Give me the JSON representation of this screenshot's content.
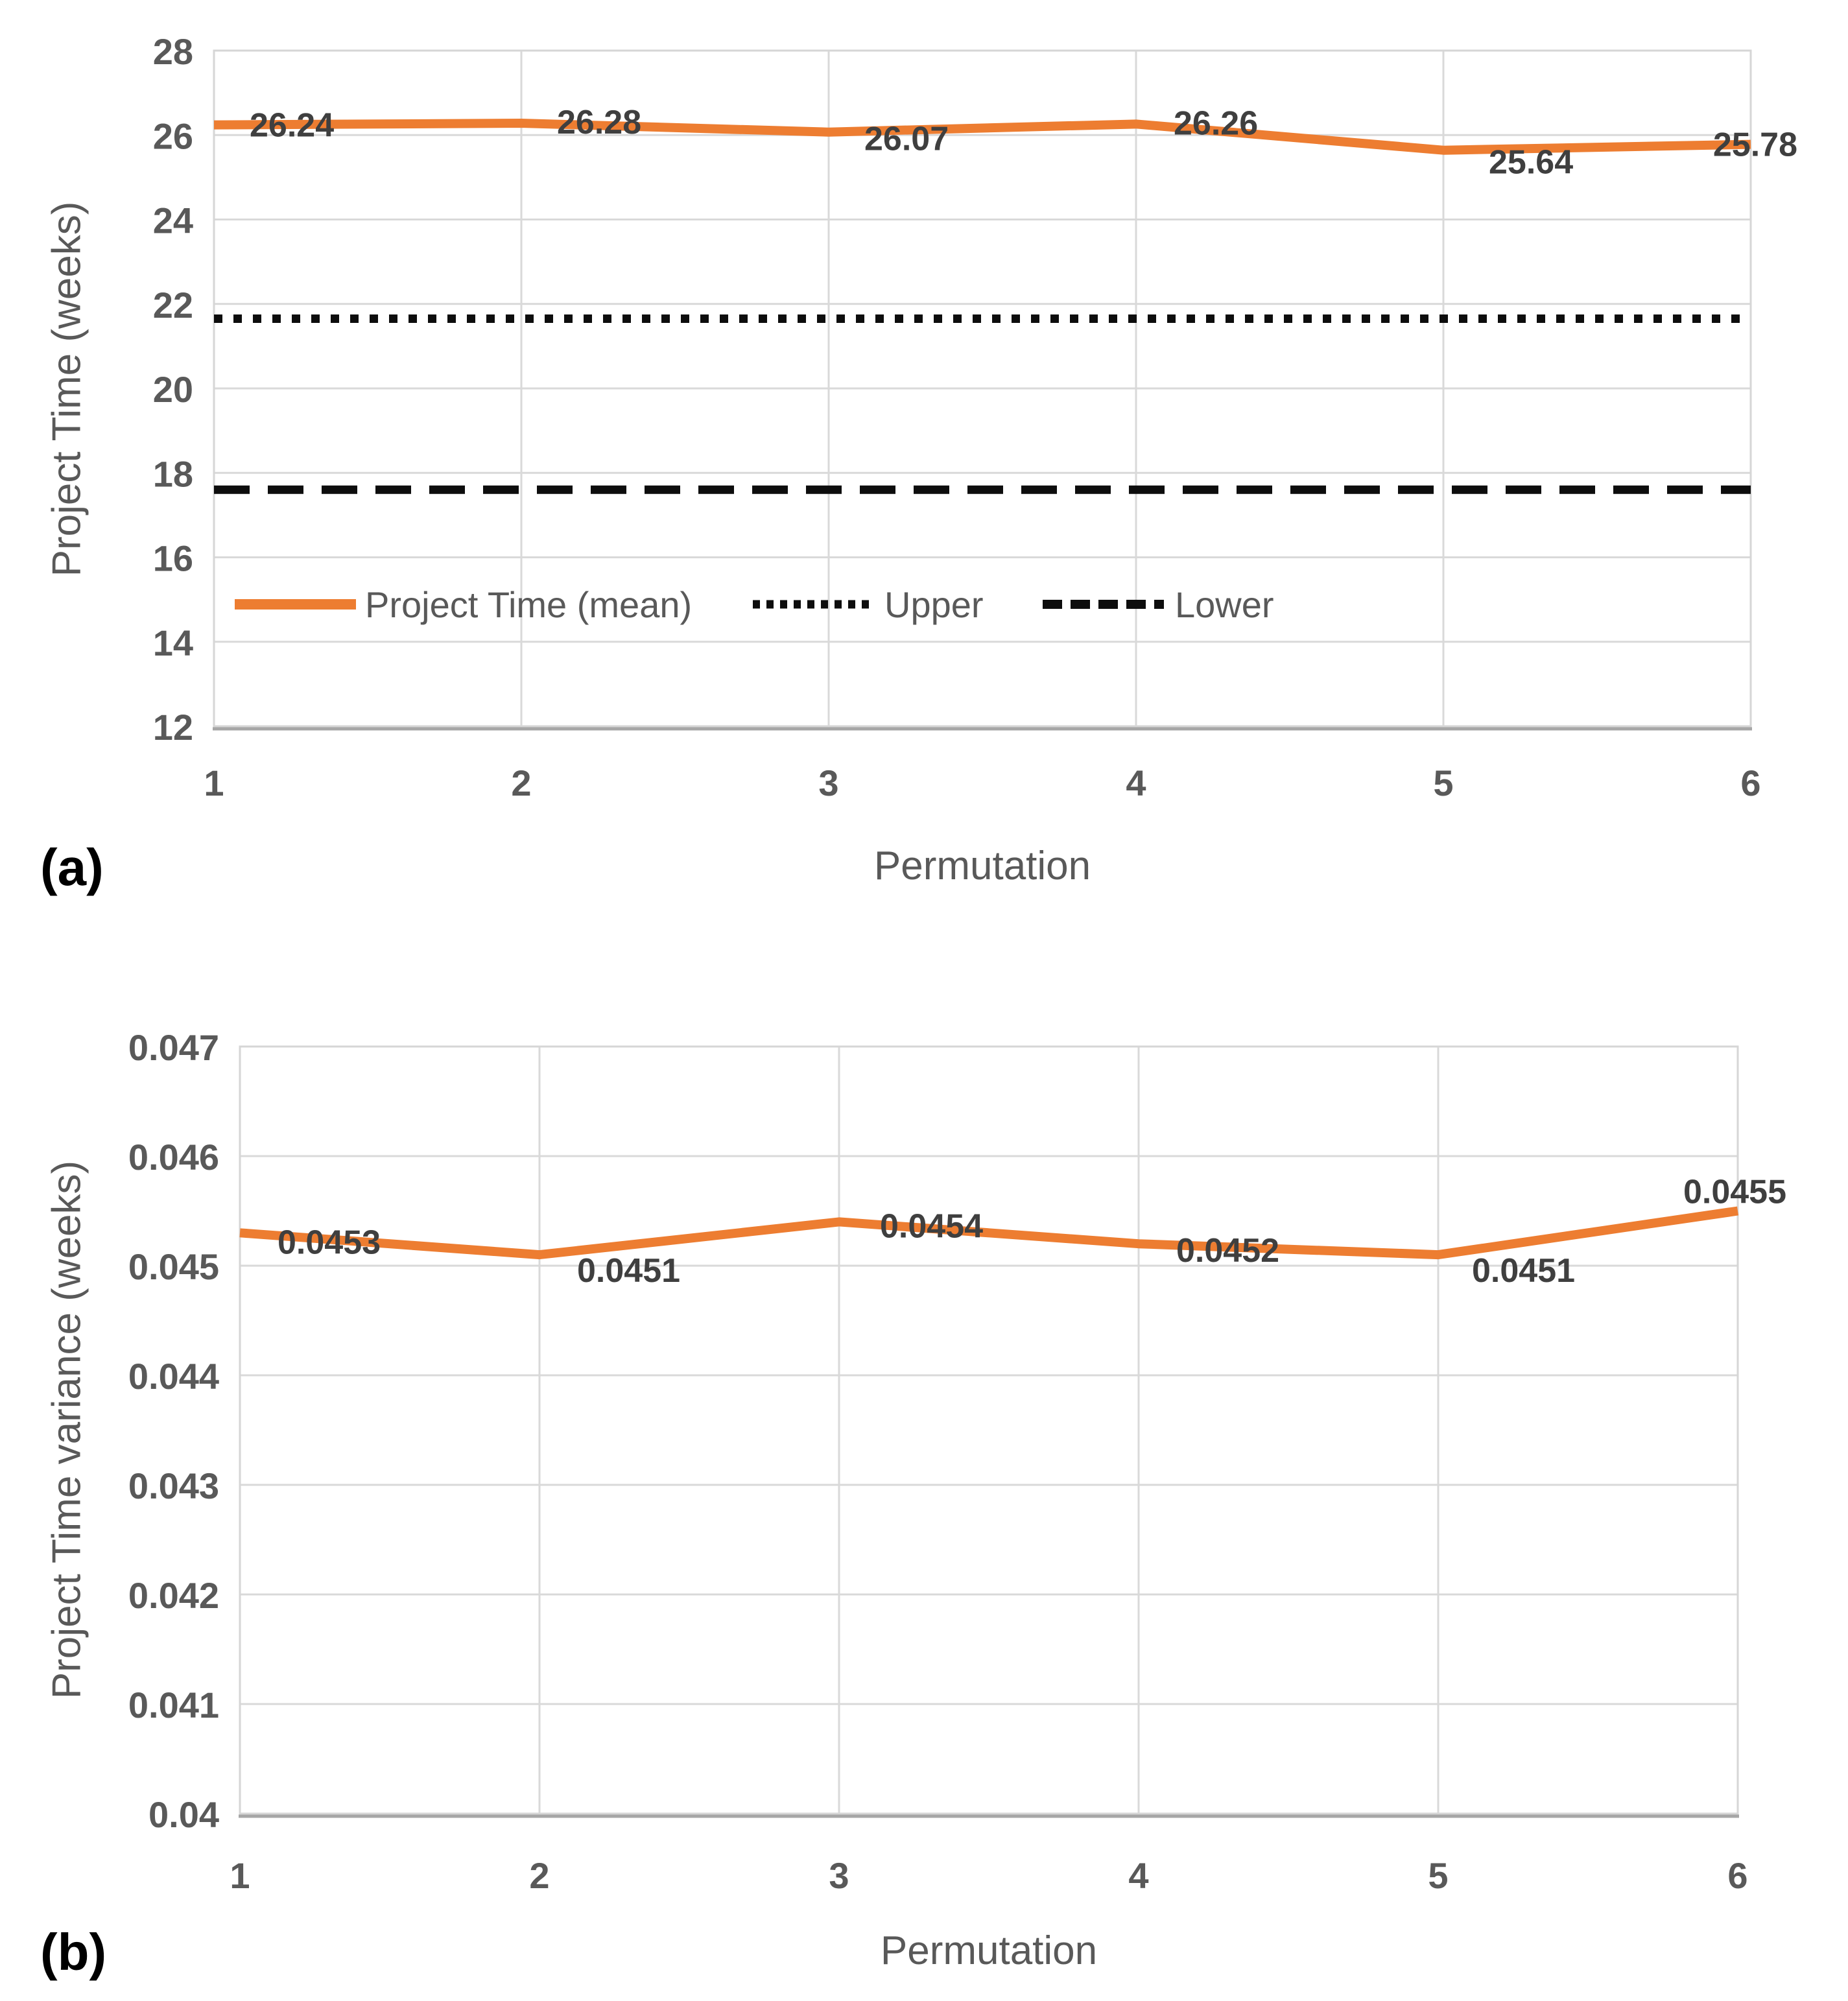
{
  "colors": {
    "series_orange": "#ED7D31",
    "bound_black": "#0d0d0d",
    "grid": "#D9D9D9",
    "plot_border": "#D6D6D6",
    "bottom_axis": "#A6A6A6",
    "tick_text": "#595959",
    "data_label_text": "#3F3F3F",
    "axis_title_text": "#595959",
    "panel_label_text": "#000000"
  },
  "chart_data": [
    {
      "type": "line",
      "panel_label": "(a)",
      "xlabel": "Permutation",
      "ylabel": "Project Time (weeks)",
      "x": [
        1,
        2,
        3,
        4,
        5,
        6
      ],
      "xtick_labels": [
        "1",
        "2",
        "3",
        "4",
        "5",
        "6"
      ],
      "ylim": [
        12,
        28
      ],
      "grid": true,
      "yticks": [
        {
          "v": 12,
          "label": "12"
        },
        {
          "v": 14,
          "label": "14"
        },
        {
          "v": 16,
          "label": "16"
        },
        {
          "v": 18,
          "label": "18"
        },
        {
          "v": 20,
          "label": "20"
        },
        {
          "v": 22,
          "label": "22"
        },
        {
          "v": 24,
          "label": "24"
        },
        {
          "v": 26,
          "label": "26"
        },
        {
          "v": 28,
          "label": "28"
        }
      ],
      "series": [
        {
          "name": "Project Time (mean)",
          "style": "solid",
          "color": "#ED7D31",
          "values": [
            26.24,
            26.28,
            26.07,
            26.26,
            25.64,
            25.78
          ],
          "point_labels": [
            "26.24",
            "26.28",
            "26.07",
            "26.26",
            "25.64",
            "25.78"
          ]
        },
        {
          "name": "Upper",
          "style": "dotted",
          "color": "#0d0d0d",
          "constant": 21.65
        },
        {
          "name": "Lower",
          "style": "dashed",
          "color": "#0d0d0d",
          "constant": 17.6
        }
      ],
      "legend": {
        "position": "inside-bottom-left",
        "labels": [
          "Project Time (mean)",
          "Upper",
          "Lower"
        ]
      }
    },
    {
      "type": "line",
      "panel_label": "(b)",
      "xlabel": "Permutation",
      "ylabel": "Project Time variance (weeks)",
      "x": [
        1,
        2,
        3,
        4,
        5,
        6
      ],
      "xtick_labels": [
        "1",
        "2",
        "3",
        "4",
        "5",
        "6"
      ],
      "ylim": [
        0.04,
        0.047
      ],
      "grid": true,
      "yticks": [
        {
          "v": 0.04,
          "label": "0.04"
        },
        {
          "v": 0.041,
          "label": "0.041"
        },
        {
          "v": 0.042,
          "label": "0.042"
        },
        {
          "v": 0.043,
          "label": "0.043"
        },
        {
          "v": 0.044,
          "label": "0.044"
        },
        {
          "v": 0.045,
          "label": "0.045"
        },
        {
          "v": 0.046,
          "label": "0.046"
        },
        {
          "v": 0.047,
          "label": "0.047"
        }
      ],
      "series": [
        {
          "name": "Project Time variance",
          "style": "solid",
          "color": "#ED7D31",
          "values": [
            0.0453,
            0.0451,
            0.0454,
            0.0452,
            0.0451,
            0.0455
          ],
          "point_labels": [
            "0.0453",
            "0.0451",
            "0.0454",
            "0.0452",
            "0.0451",
            "0.0455"
          ]
        }
      ],
      "legend": null
    }
  ]
}
